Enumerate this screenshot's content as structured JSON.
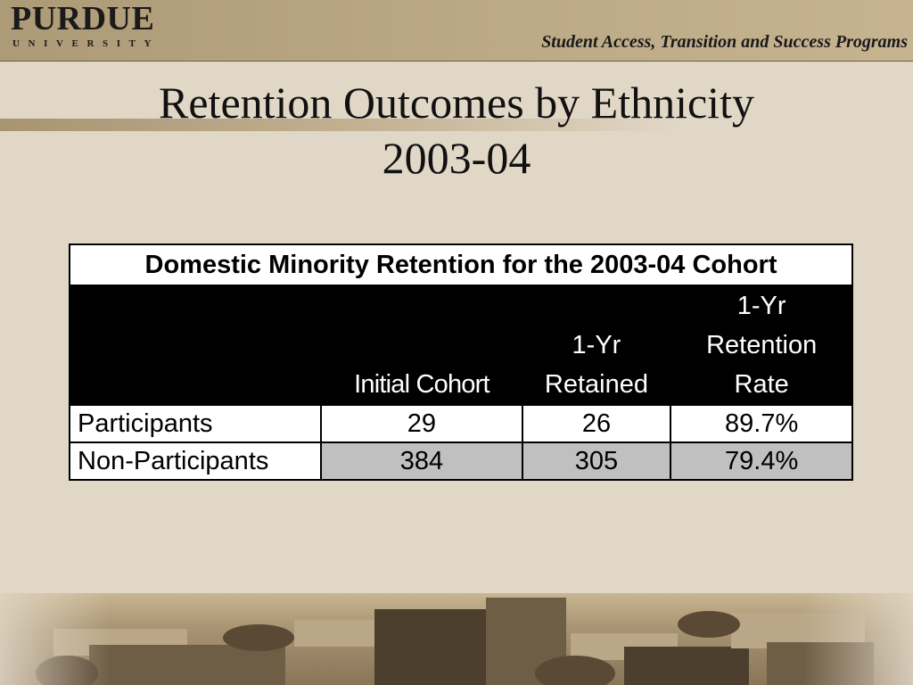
{
  "header": {
    "logo_main": "PURDUE",
    "logo_sub": "UNIVERSITY",
    "program": "Student Access, Transition and Success Programs"
  },
  "title": {
    "line1": "Retention Outcomes by Ethnicity",
    "line2": "2003-04"
  },
  "table": {
    "caption": "Domestic Minority Retention for the 2003-04 Cohort",
    "columns": {
      "label": "",
      "initial": "Initial Cohort",
      "retained_l1": "1-Yr",
      "retained_l2": "Retained",
      "rate_l1": "1-Yr",
      "rate_l2": "Retention",
      "rate_l3": "Rate"
    },
    "rows": [
      {
        "label": "Participants",
        "initial": "29",
        "retained": "26",
        "rate": "89.7%"
      },
      {
        "label": "Non-Participants",
        "initial": "384",
        "retained": "305",
        "rate": "79.4%"
      }
    ]
  },
  "colors": {
    "background": "#e1d7c6",
    "header_band": "#bca985",
    "table_header": "#000000",
    "alt_row": "#c0c0c0"
  }
}
